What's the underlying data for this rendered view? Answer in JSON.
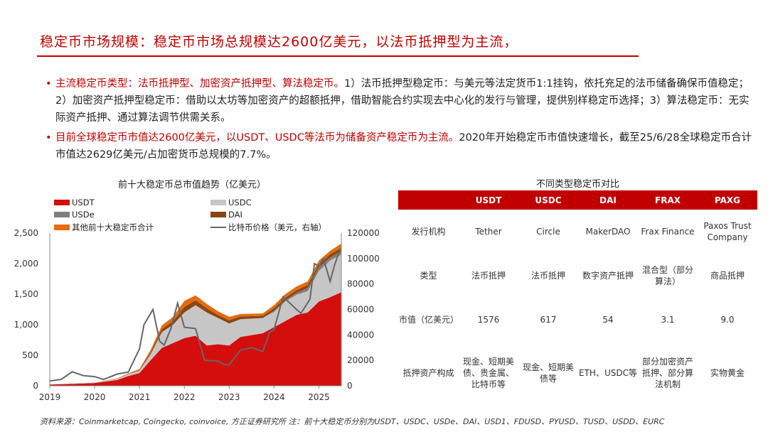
{
  "header": {
    "title": "稳定币市场规模：稳定币市场总规模达2600亿美元，以法币抵押型为主流，"
  },
  "bullets": [
    {
      "highlight": "主流稳定币类型：法币抵押型、加密资产抵押型、算法稳定币。",
      "text": "1）法币抵押型稳定币：与美元等法定货币1:1挂钩，依托充足的法币储备确保币值稳定；2）加密资产抵押型稳定币：借助以太坊等加密资产的超额抵押，借助智能合约实现去中心化的发行与管理，提供别样稳定币选择；3）算法稳定币：无实际资产抵押、通过算法调节供需关系。"
    },
    {
      "highlight": "目前全球稳定币市值达2600亿美元，以USDT、USDC等法币为储备资产稳定币为主流。",
      "text": "2020年开始稳定币市值快速增长，截至25/6/28全球稳定币合计市值达2629亿美元/占加密货币总规模的7.7%。"
    }
  ],
  "colors": {
    "accent": "#c00000",
    "usdt": "#d40d0d",
    "usdc": "#c6c6c6",
    "usde": "#7f7f7f",
    "dai": "#8b4513",
    "others": "#e46c0a",
    "btc": "#666666"
  },
  "chart_data": {
    "type": "area",
    "stacked": true,
    "title": "前十大稳定币总市值趋势（亿美元）",
    "legend_position": "top",
    "grid": false,
    "x_ticks": [
      "2019",
      "2020",
      "2021",
      "2022",
      "2023",
      "2024",
      "2025"
    ],
    "y_ticks": [
      "0",
      "500",
      "1,000",
      "1,500",
      "2,000",
      "2,500"
    ],
    "y2_ticks": [
      "0",
      "20000",
      "40000",
      "60000",
      "80000",
      "100000",
      "120000"
    ],
    "ylim": [
      0,
      2500
    ],
    "y2lim": [
      0,
      120000
    ],
    "x": [
      2019.0,
      2019.5,
      2020.0,
      2020.5,
      2020.75,
      2021.0,
      2021.25,
      2021.5,
      2021.75,
      2022.0,
      2022.25,
      2022.5,
      2022.75,
      2023.0,
      2023.25,
      2023.5,
      2023.75,
      2024.0,
      2024.25,
      2024.5,
      2024.75,
      2025.0,
      2025.25,
      2025.5
    ],
    "series": [
      {
        "name": "USDT",
        "color_key": "usdt",
        "values": [
          20,
          30,
          45,
          95,
          160,
          210,
          420,
          620,
          700,
          780,
          820,
          660,
          680,
          660,
          800,
          830,
          860,
          960,
          1060,
          1160,
          1200,
          1380,
          1450,
          1530
        ]
      },
      {
        "name": "USDC",
        "color_key": "usdc",
        "values": [
          4,
          5,
          6,
          20,
          30,
          40,
          100,
          260,
          300,
          420,
          500,
          540,
          430,
          360,
          290,
          270,
          250,
          250,
          320,
          330,
          350,
          500,
          600,
          620
        ]
      },
      {
        "name": "USDe",
        "color_key": "usde",
        "values": [
          0,
          0,
          0,
          0,
          0,
          0,
          0,
          0,
          0,
          0,
          0,
          0,
          0,
          0,
          0,
          0,
          0,
          20,
          20,
          30,
          50,
          60,
          50,
          55
        ]
      },
      {
        "name": "DAI",
        "color_key": "dai",
        "values": [
          1,
          1,
          1,
          2,
          5,
          10,
          30,
          50,
          60,
          90,
          80,
          70,
          50,
          50,
          45,
          40,
          35,
          40,
          40,
          45,
          50,
          50,
          50,
          54
        ]
      },
      {
        "name": "其他前十大稳定币合计",
        "color_key": "others",
        "values": [
          1,
          2,
          2,
          5,
          8,
          15,
          40,
          60,
          70,
          100,
          80,
          70,
          60,
          60,
          40,
          40,
          40,
          50,
          60,
          60,
          60,
          60,
          60,
          70
        ]
      }
    ],
    "line_series": {
      "name": "比特币价格（美元，右轴）",
      "axis": "right",
      "x": [
        2019.0,
        2019.25,
        2019.5,
        2019.75,
        2020.0,
        2020.2,
        2020.5,
        2020.75,
        2021.0,
        2021.1,
        2021.3,
        2021.45,
        2021.55,
        2021.7,
        2021.85,
        2022.0,
        2022.25,
        2022.45,
        2022.75,
        2022.9,
        2023.0,
        2023.25,
        2023.5,
        2023.75,
        2023.9,
        2024.0,
        2024.2,
        2024.5,
        2024.6,
        2024.8,
        2024.9,
        2025.0,
        2025.1,
        2025.25,
        2025.35,
        2025.45,
        2025.5
      ],
      "values": [
        3800,
        5000,
        11000,
        8000,
        7200,
        5000,
        9200,
        10800,
        29000,
        48000,
        60000,
        35000,
        32000,
        45000,
        65000,
        46000,
        45000,
        20000,
        19500,
        16500,
        16500,
        28000,
        30000,
        27000,
        42000,
        44000,
        70000,
        60000,
        57000,
        68000,
        96000,
        94000,
        100000,
        82000,
        95000,
        105000,
        107000
      ]
    }
  },
  "table": {
    "title": "不同类型稳定币对比",
    "columns": [
      "",
      "USDT",
      "USDC",
      "DAI",
      "FRAX",
      "PAXG"
    ],
    "rows": [
      [
        "发行机构",
        "Tether",
        "Circle",
        "MakerDAO",
        "Frax Finance",
        "Paxos Trust Company"
      ],
      [
        "类型",
        "法币抵押",
        "法币抵押",
        "数字资产抵押",
        "混合型（部分算法）",
        "商品抵押"
      ],
      [
        "市值（亿美元）",
        "1576",
        "617",
        "54",
        "3.1",
        "9.0"
      ],
      [
        "抵押资产构成",
        "现金、短期美债、贵金属、比特币等",
        "现金、短期美债等",
        "ETH、USDC等",
        "部分加密资产抵押、部分算法机制",
        "实物黄金"
      ]
    ]
  },
  "footer": {
    "source": "资料来源：Coinmarketcap, Coingecko, coinvoice, 方正证券研究所 注：前十大稳定币分别为USDT、USDC、USDe、DAI、USD1、FDUSD、PYUSD、TUSD、USDD、EURC"
  }
}
